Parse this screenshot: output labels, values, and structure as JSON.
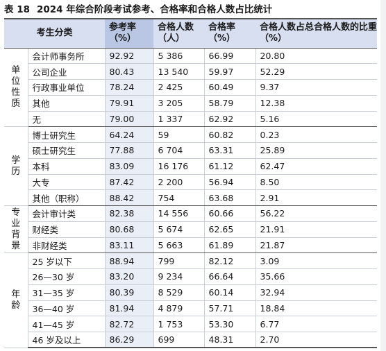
{
  "caption": {
    "number": "表 18",
    "title": "2024 年综合阶段考试参考、合格率和合格人数占比统计"
  },
  "headers": {
    "category": "考生分类",
    "reference_rate": "参考率（%）",
    "passed_count": "合格人数（人）",
    "pass_rate": "合格率（%）",
    "share": "合格人数占总合格人数的比重（%）"
  },
  "groups": [
    {
      "label": "单位性质",
      "rows": [
        {
          "name": "会计师事务所",
          "reference_rate": "92.92",
          "passed_count": "5 386",
          "pass_rate": "66.99",
          "share": "20.80"
        },
        {
          "name": "公司企业",
          "reference_rate": "80.43",
          "passed_count": "13 540",
          "pass_rate": "59.97",
          "share": "52.29"
        },
        {
          "name": "行政事业单位",
          "reference_rate": "78.24",
          "passed_count": "2 425",
          "pass_rate": "60.49",
          "share": "9.37"
        },
        {
          "name": "其他",
          "reference_rate": "79.91",
          "passed_count": "3 205",
          "pass_rate": "58.79",
          "share": "12.38"
        },
        {
          "name": "无",
          "reference_rate": "79.00",
          "passed_count": "1 337",
          "pass_rate": "62.92",
          "share": "5.16"
        }
      ]
    },
    {
      "label": "学历",
      "rows": [
        {
          "name": "博士研究生",
          "reference_rate": "64.24",
          "passed_count": "59",
          "pass_rate": "60.82",
          "share": "0.23"
        },
        {
          "name": "硕士研究生",
          "reference_rate": "77.88",
          "passed_count": "6 704",
          "pass_rate": "63.31",
          "share": "25.89"
        },
        {
          "name": "本科",
          "reference_rate": "83.09",
          "passed_count": "16 176",
          "pass_rate": "61.12",
          "share": "62.47"
        },
        {
          "name": "大专",
          "reference_rate": "87.42",
          "passed_count": "2 200",
          "pass_rate": "56.94",
          "share": "8.50"
        },
        {
          "name": "其他（职称）",
          "reference_rate": "88.42",
          "passed_count": "754",
          "pass_rate": "63.68",
          "share": "2.91"
        }
      ]
    },
    {
      "label": "专业背景",
      "rows": [
        {
          "name": "会计审计类",
          "reference_rate": "82.38",
          "passed_count": "14 556",
          "pass_rate": "60.66",
          "share": "56.22"
        },
        {
          "name": "财经类",
          "reference_rate": "80.68",
          "passed_count": "5 674",
          "pass_rate": "62.65",
          "share": "21.91"
        },
        {
          "name": "非财经类",
          "reference_rate": "83.11",
          "passed_count": "5 663",
          "pass_rate": "61.89",
          "share": "21.87"
        }
      ]
    },
    {
      "label": "年龄",
      "rows": [
        {
          "name": "25 岁以下",
          "reference_rate": "88.94",
          "passed_count": "799",
          "pass_rate": "82.12",
          "share": "3.09"
        },
        {
          "name": "26—30 岁",
          "reference_rate": "83.20",
          "passed_count": "9 234",
          "pass_rate": "66.64",
          "share": "35.66"
        },
        {
          "name": "31—35 岁",
          "reference_rate": "80.39",
          "passed_count": "8 529",
          "pass_rate": "60.14",
          "share": "32.94"
        },
        {
          "name": "36—40 岁",
          "reference_rate": "81.94",
          "passed_count": "4 879",
          "pass_rate": "57.71",
          "share": "18.84"
        },
        {
          "name": "41—45 岁",
          "reference_rate": "82.72",
          "passed_count": "1 753",
          "pass_rate": "53.30",
          "share": "6.77"
        },
        {
          "name": "46 岁及以上",
          "reference_rate": "86.29",
          "passed_count": "699",
          "pass_rate": "48.31",
          "share": "2.70"
        }
      ]
    }
  ]
}
